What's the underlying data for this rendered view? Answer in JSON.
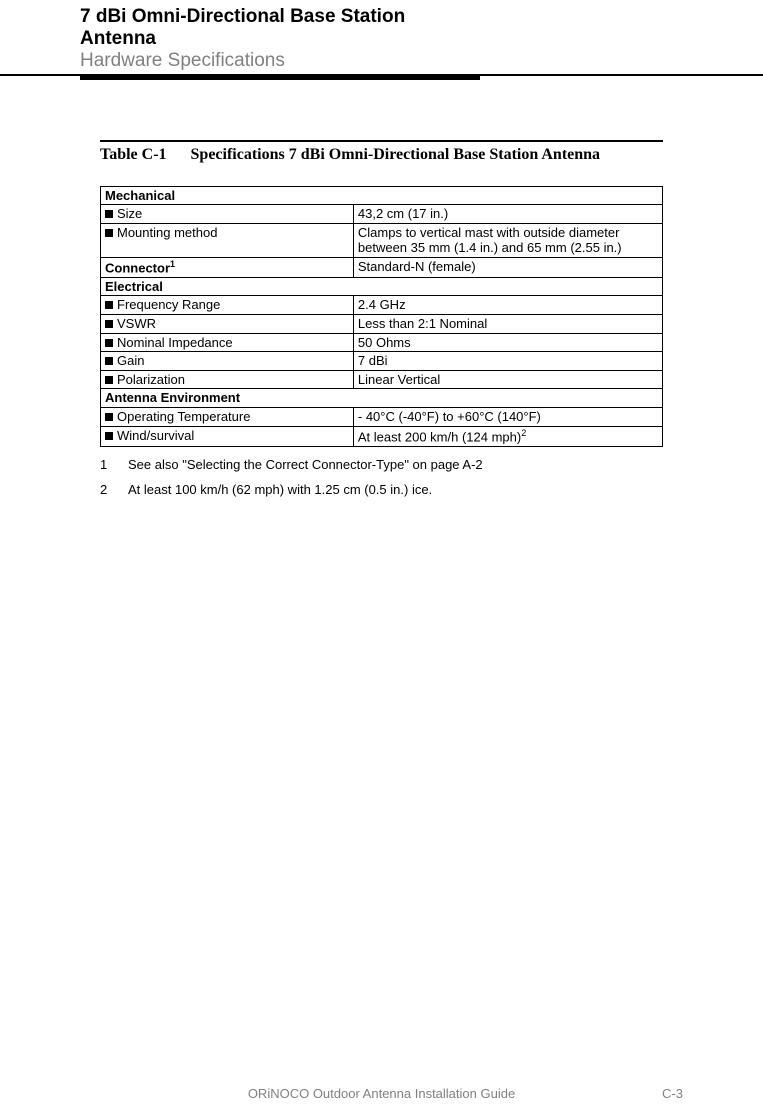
{
  "header": {
    "title_line1": "7 dBi Omni-Directional Base Station",
    "title_line2": "Antenna",
    "subtitle": "Hardware Specifications"
  },
  "table_caption": {
    "label": "Table  C-1",
    "text": "Specifications 7 dBi Omni-Directional Base Station Antenna"
  },
  "sections": {
    "mechanical": {
      "heading": "Mechanical",
      "rows": [
        {
          "label": "Size",
          "value": "43,2 cm (17 in.)"
        },
        {
          "label": "Mounting method",
          "value": "Clamps to vertical mast with outside diameter between 35 mm (1.4 in.) and 65 mm (2.55 in.)"
        }
      ]
    },
    "connector": {
      "heading": "Connector",
      "heading_sup": "1",
      "value": "Standard-N (female)"
    },
    "electrical": {
      "heading": "Electrical",
      "rows": [
        {
          "label": "Frequency Range",
          "value": "2.4 GHz"
        },
        {
          "label": "VSWR",
          "value": "Less than 2:1 Nominal"
        },
        {
          "label": "Nominal Impedance",
          "value": "50 Ohms"
        },
        {
          "label": "Gain",
          "value": "7 dBi"
        },
        {
          "label": "Polarization",
          "value": "Linear Vertical"
        }
      ]
    },
    "environment": {
      "heading": "Antenna Environment",
      "rows": [
        {
          "label": "Operating Temperature",
          "value": "- 40°C (-40°F) to +60°C (140°F)"
        },
        {
          "label": "Wind/survival",
          "value": "At least 200 km/h (124 mph)",
          "value_sup": "2"
        }
      ]
    }
  },
  "footnotes": [
    {
      "num": "1",
      "text": "See also \"Selecting the Correct Connector-Type\" on page A-2"
    },
    {
      "num": "2",
      "text": "At least 100 km/h (62 mph) with 1.25 cm (0.5 in.) ice."
    }
  ],
  "footer": {
    "center": "ORiNOCO Outdoor Antenna Installation Guide",
    "right": "C-3"
  },
  "colors": {
    "text": "#000000",
    "muted": "#808080",
    "border": "#000000",
    "background": "#ffffff"
  },
  "fonts": {
    "body": "Arial, Helvetica, sans-serif",
    "caption": "Times New Roman, Times, serif",
    "header_size": 19,
    "body_size": 13,
    "caption_size": 16
  }
}
